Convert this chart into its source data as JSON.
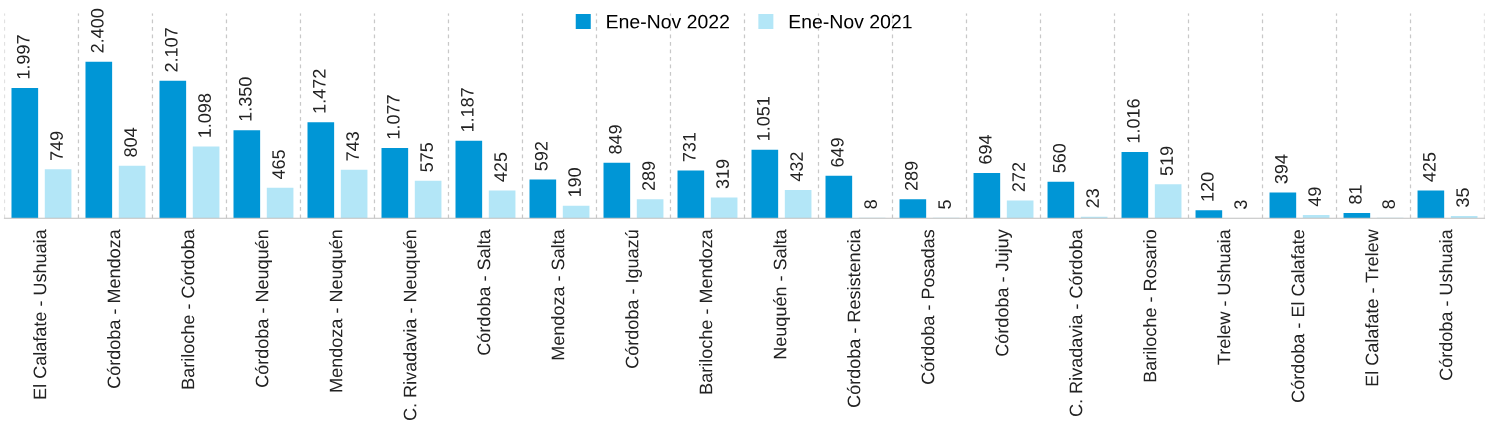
{
  "chart_data": {
    "type": "bar",
    "categories": [
      "El Calafate - Ushuaia",
      "Córdoba - Mendoza",
      "Bariloche - Córdoba",
      "Córdoba - Neuquén",
      "Mendoza - Neuquén",
      "C. Rivadavia - Neuquén",
      "Córdoba - Salta",
      "Mendoza - Salta",
      "Córdoba - Iguazú",
      "Bariloche - Mendoza",
      "Neuquén - Salta",
      "Córdoba - Resistencia",
      "Córdoba - Posadas",
      "Córdoba - Jujuy",
      "C. Rivadavia - Córdoba",
      "Bariloche - Rosario",
      "Trelew - Ushuaia",
      "Córdoba - El Calafate",
      "El Calafate - Trelew",
      "Córdoba - Ushuaia"
    ],
    "series": [
      {
        "name": "Ene-Nov 2022",
        "color": "#0096d6",
        "values": [
          1997,
          2400,
          2107,
          1350,
          1472,
          1077,
          1187,
          592,
          849,
          731,
          1051,
          649,
          289,
          694,
          560,
          1016,
          120,
          394,
          81,
          425
        ],
        "value_labels": [
          "1.997",
          "2.400",
          "2.107",
          "1.350",
          "1.472",
          "1.077",
          "1.187",
          "592",
          "849",
          "731",
          "1.051",
          "649",
          "289",
          "694",
          "560",
          "1.016",
          "120",
          "394",
          "81",
          "425"
        ]
      },
      {
        "name": "Ene-Nov 2021",
        "color": "#b3e6f7",
        "values": [
          749,
          804,
          1098,
          465,
          743,
          575,
          425,
          190,
          289,
          319,
          432,
          8,
          5,
          272,
          23,
          519,
          3,
          49,
          8,
          35
        ],
        "value_labels": [
          "749",
          "804",
          "1.098",
          "465",
          "743",
          "575",
          "425",
          "190",
          "289",
          "319",
          "432",
          "8",
          "5",
          "272",
          "23",
          "519",
          "3",
          "49",
          "8",
          "35"
        ]
      }
    ],
    "legend": "top",
    "grid": "x"
  }
}
